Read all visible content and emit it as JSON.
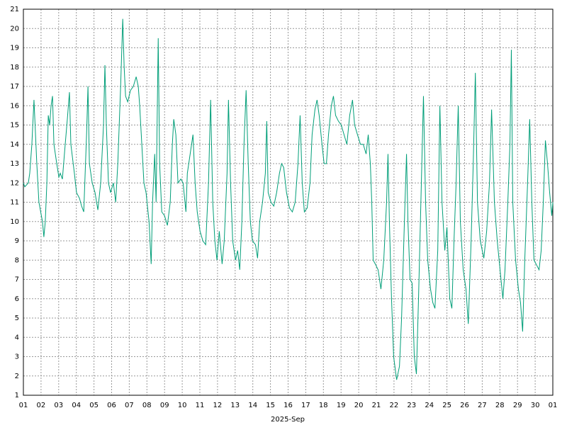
{
  "chart_data": {
    "type": "line",
    "xlabel": "2025-Sep",
    "color": "#009e78",
    "grid": true,
    "xlim": [
      0,
      30
    ],
    "ylim": [
      1,
      21
    ],
    "yticks": [
      1,
      2,
      3,
      4,
      5,
      6,
      7,
      8,
      9,
      10,
      11,
      12,
      13,
      14,
      15,
      16,
      17,
      18,
      19,
      20,
      21
    ],
    "xticks": [
      {
        "value": 0,
        "label": "01"
      },
      {
        "value": 1,
        "label": "02"
      },
      {
        "value": 2,
        "label": "03"
      },
      {
        "value": 3,
        "label": "04"
      },
      {
        "value": 4,
        "label": "05"
      },
      {
        "value": 5,
        "label": "06"
      },
      {
        "value": 6,
        "label": "07"
      },
      {
        "value": 7,
        "label": "08"
      },
      {
        "value": 8,
        "label": "09"
      },
      {
        "value": 9,
        "label": "10"
      },
      {
        "value": 10,
        "label": "11"
      },
      {
        "value": 11,
        "label": "12"
      },
      {
        "value": 12,
        "label": "13"
      },
      {
        "value": 13,
        "label": "14"
      },
      {
        "value": 14,
        "label": "15"
      },
      {
        "value": 15,
        "label": "16"
      },
      {
        "value": 16,
        "label": "17"
      },
      {
        "value": 17,
        "label": "18"
      },
      {
        "value": 18,
        "label": "19"
      },
      {
        "value": 19,
        "label": "20"
      },
      {
        "value": 20,
        "label": "21"
      },
      {
        "value": 21,
        "label": "22"
      },
      {
        "value": 22,
        "label": "23"
      },
      {
        "value": 23,
        "label": "24"
      },
      {
        "value": 24,
        "label": "25"
      },
      {
        "value": 25,
        "label": "26"
      },
      {
        "value": 26,
        "label": "27"
      },
      {
        "value": 27,
        "label": "28"
      },
      {
        "value": 28,
        "label": "29"
      },
      {
        "value": 29,
        "label": "30"
      },
      {
        "value": 30,
        "label": "01"
      }
    ],
    "x": [
      0,
      0.08,
      0.28,
      0.36,
      0.48,
      0.6,
      0.76,
      0.88,
      1.08,
      1.16,
      1.24,
      1.33,
      1.41,
      1.49,
      1.57,
      1.65,
      1.73,
      1.89,
      2.01,
      2.09,
      2.21,
      2.37,
      2.49,
      2.61,
      2.69,
      2.89,
      3.01,
      3.18,
      3.3,
      3.42,
      3.5,
      3.58,
      3.66,
      3.74,
      3.9,
      4.06,
      4.22,
      4.38,
      4.54,
      4.62,
      4.7,
      4.82,
      4.94,
      5.1,
      5.23,
      5.35,
      5.51,
      5.63,
      5.71,
      5.79,
      5.91,
      6.07,
      6.23,
      6.39,
      6.51,
      6.59,
      6.71,
      6.83,
      6.95,
      7.12,
      7.24,
      7.32,
      7.44,
      7.52,
      7.64,
      7.72,
      7.84,
      8.0,
      8.16,
      8.32,
      8.44,
      8.52,
      8.64,
      8.76,
      8.92,
      9.05,
      9.21,
      9.29,
      9.45,
      9.61,
      9.73,
      9.85,
      10.01,
      10.17,
      10.33,
      10.49,
      10.61,
      10.73,
      10.85,
      10.97,
      11.1,
      11.26,
      11.38,
      11.54,
      11.62,
      11.74,
      11.86,
      12.02,
      12.14,
      12.26,
      12.38,
      12.5,
      12.62,
      12.74,
      12.86,
      12.98,
      13.15,
      13.27,
      13.39,
      13.55,
      13.71,
      13.79,
      13.87,
      14.03,
      14.19,
      14.35,
      14.51,
      14.63,
      14.75,
      14.91,
      15.08,
      15.24,
      15.4,
      15.56,
      15.68,
      15.8,
      15.92,
      16.08,
      16.24,
      16.36,
      16.52,
      16.64,
      16.76,
      16.92,
      17.04,
      17.17,
      17.29,
      17.45,
      17.57,
      17.69,
      17.85,
      18.01,
      18.17,
      18.33,
      18.49,
      18.65,
      18.77,
      18.93,
      19.1,
      19.26,
      19.42,
      19.54,
      19.66,
      19.74,
      19.82,
      19.94,
      20.1,
      20.26,
      20.42,
      20.58,
      20.66,
      20.74,
      20.86,
      20.98,
      21.15,
      21.31,
      21.43,
      21.59,
      21.71,
      21.79,
      21.91,
      22.03,
      22.15,
      22.27,
      22.39,
      22.55,
      22.67,
      22.79,
      22.91,
      23.07,
      23.2,
      23.32,
      23.48,
      23.6,
      23.72,
      23.88,
      24.0,
      24.16,
      24.28,
      24.4,
      24.52,
      24.64,
      24.76,
      24.92,
      25.08,
      25.21,
      25.37,
      25.49,
      25.61,
      25.73,
      25.89,
      26.09,
      26.25,
      26.41,
      26.53,
      26.69,
      26.85,
      27.01,
      27.17,
      27.29,
      27.45,
      27.57,
      27.65,
      27.73,
      27.89,
      28.05,
      28.17,
      28.29,
      28.41,
      28.57,
      28.69,
      28.81,
      28.93,
      29.05,
      29.22,
      29.34,
      29.46,
      29.58,
      29.7,
      29.82,
      29.94,
      30.0
    ],
    "values": [
      12,
      11.8,
      12,
      12.5,
      14,
      16.3,
      13,
      11,
      10,
      9.2,
      10,
      12,
      15.5,
      15,
      16,
      16.5,
      14,
      13,
      12.3,
      12.5,
      12.2,
      14,
      15.3,
      16.7,
      14,
      12.5,
      11.5,
      11.2,
      10.8,
      10.5,
      12.5,
      14.5,
      17,
      13,
      12,
      11.5,
      10.6,
      12,
      15,
      18.1,
      15,
      12,
      11.5,
      12,
      11,
      13,
      17,
      20.5,
      18,
      16.5,
      16.2,
      16.8,
      17,
      17.5,
      17,
      16,
      14,
      12,
      11.5,
      10,
      7.8,
      11,
      13.5,
      11,
      19.5,
      13,
      10.5,
      10.3,
      9.8,
      11,
      14,
      15.3,
      14.5,
      12,
      12.2,
      12,
      10.5,
      12.5,
      13.5,
      14.5,
      12,
      10.5,
      9.5,
      9,
      8.8,
      12,
      16.3,
      11,
      9,
      8,
      9.5,
      7.8,
      9,
      12.5,
      16.3,
      12,
      9,
      8,
      8.5,
      7.5,
      10,
      14,
      16.8,
      13,
      10,
      9,
      8.8,
      8.1,
      10,
      11,
      12.5,
      15.2,
      11.5,
      11,
      10.8,
      11.5,
      12.5,
      13,
      12.8,
      11.5,
      10.7,
      10.5,
      11,
      13,
      15.5,
      12,
      10.5,
      10.7,
      12,
      14.5,
      15.8,
      16.3,
      15.5,
      14,
      13,
      13,
      14.5,
      16,
      16.5,
      15.5,
      15.2,
      15,
      14.5,
      14,
      15.5,
      16.3,
      15,
      14.5,
      14,
      14,
      13.5,
      14.5,
      13,
      11,
      8,
      7.8,
      7.5,
      6.5,
      8,
      11,
      13.5,
      10,
      6,
      3,
      1.8,
      2.5,
      5,
      10,
      13.5,
      10,
      7,
      6.8,
      3,
      2.1,
      6,
      12,
      16.5,
      11,
      8,
      6.5,
      5.8,
      5.5,
      8.5,
      16,
      11,
      8.5,
      9.7,
      6,
      5.5,
      9,
      12,
      16,
      10,
      7.5,
      6.5,
      4.7,
      9,
      13,
      17.7,
      11,
      9,
      8.1,
      9.5,
      12,
      15.8,
      11,
      9,
      7.5,
      6,
      7.5,
      11,
      14,
      18.9,
      11,
      8,
      6.5,
      5.8,
      4.3,
      8,
      12,
      15.3,
      11,
      8,
      7.8,
      7.5,
      8.5,
      11,
      14.2,
      13,
      11.5,
      10.3,
      11
    ]
  }
}
